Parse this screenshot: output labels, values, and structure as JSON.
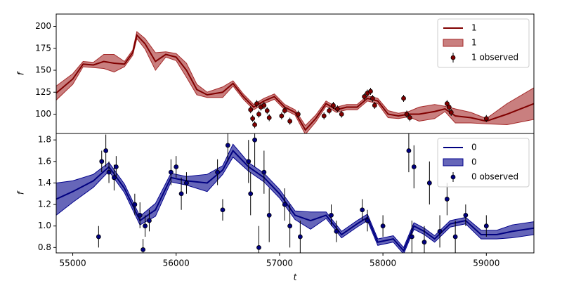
{
  "chart_data": [
    {
      "type": "line",
      "ylabel": "f",
      "legend": "upper right",
      "xlim": [
        54840,
        59460
      ],
      "ylim": [
        78,
        214
      ],
      "yticks": [
        100,
        125,
        150,
        175,
        200
      ],
      "series": [
        {
          "name": "1",
          "color": "#800000",
          "x": [
            54840,
            55000,
            55100,
            55200,
            55300,
            55400,
            55500,
            55580,
            55620,
            55700,
            55800,
            55900,
            56000,
            56100,
            56200,
            56300,
            56450,
            56550,
            56650,
            56750,
            56850,
            56950,
            57050,
            57150,
            57250,
            57350,
            57450,
            57550,
            57650,
            57750,
            57850,
            57950,
            58050,
            58150,
            58250,
            58350,
            58500,
            58600,
            58700,
            58850,
            59000,
            59200,
            59460
          ],
          "values": [
            124,
            140,
            157,
            156,
            160,
            158,
            157,
            170,
            190,
            180,
            160,
            168,
            165,
            150,
            128,
            122,
            125,
            135,
            120,
            108,
            115,
            120,
            108,
            102,
            82,
            95,
            112,
            105,
            108,
            108,
            118,
            115,
            100,
            98,
            100,
            100,
            103,
            106,
            98,
            96,
            92,
            100,
            112
          ]
        }
      ],
      "bands": [
        {
          "name": "1",
          "color": "#a52a2a",
          "x": [
            54840,
            55000,
            55100,
            55200,
            55300,
            55400,
            55500,
            55580,
            55620,
            55700,
            55800,
            55900,
            56000,
            56100,
            56200,
            56300,
            56450,
            56550,
            56650,
            56750,
            56850,
            56950,
            57050,
            57150,
            57250,
            57350,
            57450,
            57550,
            57650,
            57750,
            57850,
            57950,
            58050,
            58150,
            58250,
            58350,
            58500,
            58600,
            58700,
            58850,
            59000,
            59200,
            59460
          ],
          "lower": [
            116,
            134,
            154,
            153,
            152,
            148,
            154,
            167,
            186,
            174,
            150,
            165,
            161,
            142,
            122,
            119,
            119,
            132,
            117,
            105,
            112,
            117,
            105,
            99,
            77,
            91,
            109,
            102,
            105,
            105,
            115,
            112,
            96,
            95,
            97,
            92,
            95,
            103,
            90,
            90,
            89,
            88,
            94
          ],
          "upper": [
            132,
            146,
            160,
            159,
            168,
            168,
            160,
            173,
            194,
            186,
            170,
            171,
            169,
            158,
            134,
            125,
            131,
            138,
            123,
            111,
            118,
            123,
            111,
            105,
            87,
            99,
            115,
            108,
            111,
            111,
            121,
            118,
            104,
            101,
            103,
            108,
            111,
            109,
            106,
            102,
            95,
            112,
            130
          ]
        }
      ],
      "observations": [
        {
          "name": "1 observed",
          "color": "#800000",
          "x": [
            56720,
            56740,
            56760,
            56780,
            56800,
            56820,
            56850,
            56880,
            56900,
            57020,
            57050,
            57100,
            57180,
            57430,
            57480,
            57520,
            57560,
            57600,
            57820,
            57850,
            57880,
            57900,
            57920,
            58200,
            58230,
            58260,
            58620,
            58640,
            58660,
            59000
          ],
          "values": [
            105,
            95,
            88,
            112,
            100,
            108,
            110,
            104,
            96,
            98,
            104,
            92,
            100,
            98,
            104,
            110,
            106,
            100,
            120,
            124,
            126,
            118,
            110,
            118,
            100,
            96,
            112,
            108,
            102,
            95
          ],
          "errors": [
            4,
            4,
            4,
            4,
            4,
            4,
            4,
            4,
            4,
            4,
            4,
            4,
            4,
            4,
            4,
            4,
            4,
            4,
            4,
            4,
            4,
            4,
            4,
            4,
            4,
            4,
            4,
            4,
            4,
            4
          ]
        }
      ]
    },
    {
      "type": "line",
      "ylabel": "f",
      "xlabel": "t",
      "legend": "upper right",
      "xlim": [
        54840,
        59460
      ],
      "ylim": [
        0.75,
        1.86
      ],
      "xticks": [
        55000,
        56000,
        57000,
        58000,
        59000
      ],
      "yticks": [
        0.8,
        {
          "value": 1,
          "label": "1.0"
        },
        1.2,
        1.4,
        1.6,
        1.8
      ],
      "series": [
        {
          "name": "0",
          "color": "#000080",
          "x": [
            54840,
            55000,
            55200,
            55350,
            55500,
            55650,
            55800,
            55950,
            56100,
            56300,
            56450,
            56550,
            56700,
            56850,
            57000,
            57150,
            57300,
            57450,
            57600,
            57750,
            57850,
            57950,
            58100,
            58200,
            58300,
            58400,
            58500,
            58650,
            58800,
            58950,
            59100,
            59250,
            59460
          ],
          "values": [
            1.25,
            1.32,
            1.42,
            1.55,
            1.35,
            1.05,
            1.15,
            1.45,
            1.42,
            1.4,
            1.52,
            1.7,
            1.55,
            1.45,
            1.3,
            1.1,
            1.05,
            1.1,
            0.92,
            1.02,
            1.08,
            0.85,
            0.88,
            0.77,
            1.0,
            0.95,
            0.88,
            1.02,
            1.05,
            0.92,
            0.92,
            0.95,
            0.98
          ]
        }
      ],
      "bands": [
        {
          "name": "0",
          "color": "#00008b",
          "x": [
            54840,
            55000,
            55200,
            55350,
            55500,
            55650,
            55800,
            55950,
            56100,
            56300,
            56450,
            56550,
            56700,
            56850,
            57000,
            57150,
            57300,
            57450,
            57600,
            57750,
            57850,
            57950,
            58100,
            58200,
            58300,
            58400,
            58500,
            58650,
            58800,
            58950,
            59100,
            59250,
            59460
          ],
          "lower": [
            1.1,
            1.22,
            1.36,
            1.51,
            1.31,
            1.01,
            1.09,
            1.41,
            1.38,
            1.32,
            1.48,
            1.64,
            1.51,
            1.41,
            1.26,
            1.06,
            0.97,
            1.07,
            0.89,
            0.99,
            1.05,
            0.82,
            0.85,
            0.74,
            0.97,
            0.92,
            0.85,
            0.99,
            1.02,
            0.88,
            0.88,
            0.89,
            0.92
          ],
          "upper": [
            1.4,
            1.42,
            1.48,
            1.59,
            1.39,
            1.09,
            1.21,
            1.49,
            1.46,
            1.48,
            1.56,
            1.76,
            1.59,
            1.49,
            1.34,
            1.14,
            1.13,
            1.13,
            0.95,
            1.05,
            1.11,
            0.88,
            0.91,
            0.8,
            1.03,
            0.98,
            0.91,
            1.05,
            1.08,
            0.96,
            0.96,
            1.01,
            1.04
          ]
        }
      ],
      "observations": [
        {
          "name": "0 observed",
          "color": "#000080",
          "x": [
            55250,
            55280,
            55320,
            55350,
            55400,
            55420,
            55600,
            55650,
            55680,
            55700,
            55740,
            55950,
            56000,
            56050,
            56100,
            56400,
            56450,
            56500,
            56700,
            56720,
            56760,
            56800,
            56850,
            56900,
            57050,
            57100,
            57200,
            57500,
            57550,
            57800,
            57850,
            58000,
            58250,
            58280,
            58300,
            58400,
            58450,
            58550,
            58620,
            58700,
            58800,
            59000
          ],
          "values": [
            0.9,
            1.6,
            1.7,
            1.5,
            1.45,
            1.55,
            1.2,
            1.1,
            0.78,
            1.0,
            1.05,
            1.5,
            1.55,
            1.3,
            1.4,
            1.5,
            1.15,
            1.75,
            1.6,
            1.3,
            1.8,
            0.8,
            1.5,
            1.1,
            1.2,
            1.0,
            0.9,
            1.1,
            0.95,
            1.15,
            1.05,
            1.0,
            1.7,
            0.9,
            1.55,
            0.85,
            1.4,
            0.95,
            1.25,
            0.9,
            1.1,
            1.0
          ],
          "errors": [
            0.1,
            0.1,
            0.15,
            0.1,
            0.12,
            0.1,
            0.1,
            0.12,
            0.1,
            0.1,
            0.1,
            0.12,
            0.1,
            0.15,
            0.1,
            0.12,
            0.1,
            0.15,
            0.2,
            0.2,
            0.25,
            0.2,
            0.2,
            0.25,
            0.15,
            0.2,
            0.15,
            0.1,
            0.1,
            0.1,
            0.1,
            0.1,
            0.2,
            0.15,
            0.2,
            0.15,
            0.2,
            0.15,
            0.15,
            0.15,
            0.1,
            0.1
          ]
        }
      ]
    }
  ]
}
